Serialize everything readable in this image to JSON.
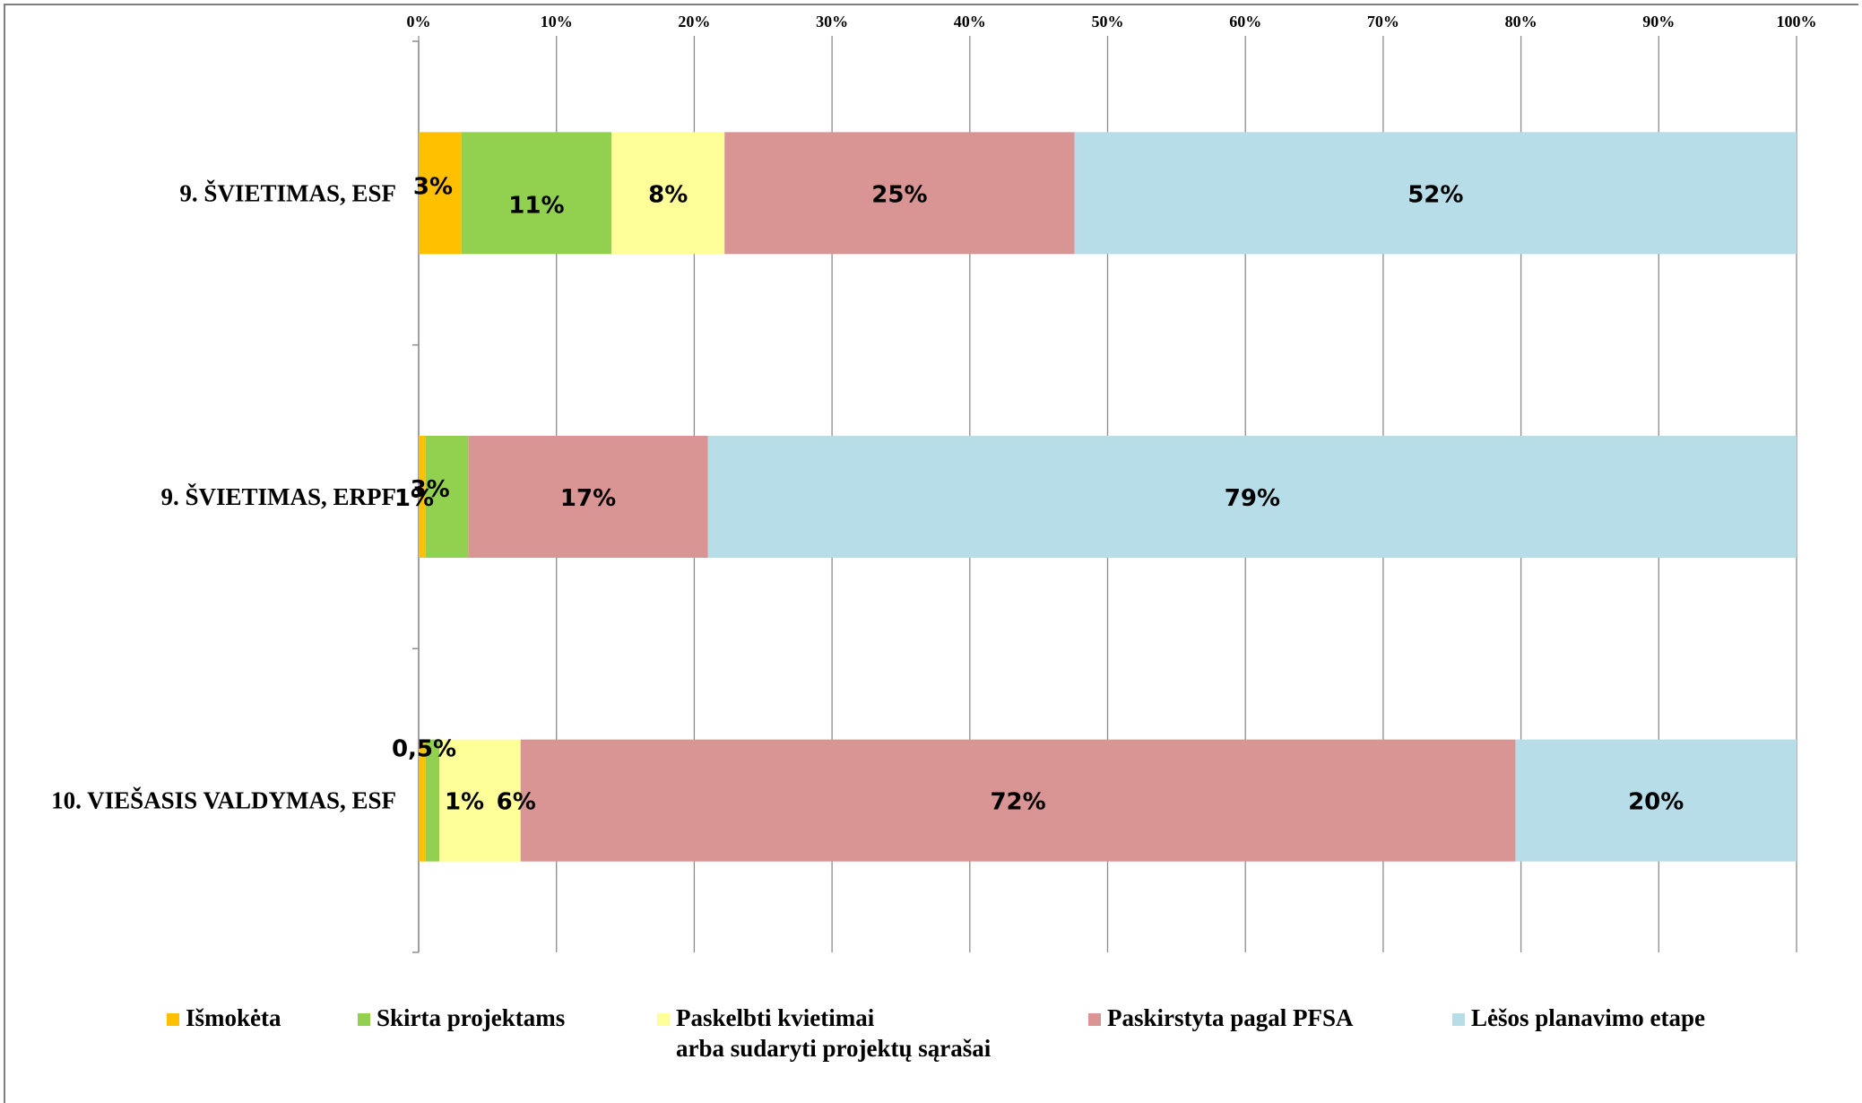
{
  "chart_data": {
    "type": "bar",
    "orientation": "horizontal",
    "stacked": "percent",
    "categories": [
      "9. ŠVIETIMAS, ESF",
      "9. ŠVIETIMAS, ERPF",
      "10. VIEŠASIS VALDYMAS, ESF"
    ],
    "xlim": [
      0,
      100
    ],
    "x_ticks": [
      "0%",
      "10%",
      "20%",
      "30%",
      "40%",
      "50%",
      "60%",
      "70%",
      "80%",
      "90%",
      "100%"
    ],
    "x_axis_position": "top",
    "grid": true,
    "legend_position": "bottom",
    "series": [
      {
        "name": "Išmokėta",
        "color": "#ffc000",
        "values": [
          3.1,
          0.5,
          0.5
        ],
        "labels": [
          "3%",
          "1%",
          "0,5%"
        ]
      },
      {
        "name": "Skirta projektams",
        "color": "#92d050",
        "values": [
          10.9,
          3.1,
          1.0
        ],
        "labels": [
          "11%",
          "3%",
          "1%"
        ]
      },
      {
        "name": "Paskelbti kvietimai arba sudaryti projektų sąrašai",
        "legend_lines": [
          "Paskelbti kvietimai",
          "arba sudaryti projektų sąrašai"
        ],
        "color": "#ffff99",
        "values": [
          8.2,
          0,
          5.9
        ],
        "labels": [
          "8%",
          "",
          "6%"
        ]
      },
      {
        "name": "Paskirstyta pagal  PFSA",
        "color": "#d99594",
        "values": [
          25.4,
          17.4,
          72.2
        ],
        "labels": [
          "25%",
          "17%",
          "72%"
        ]
      },
      {
        "name": "Lėšos planavimo etape",
        "color": "#b7dde8",
        "values": [
          52.4,
          79.0,
          20.4
        ],
        "labels": [
          "52%",
          "79%",
          "20%"
        ]
      }
    ]
  }
}
